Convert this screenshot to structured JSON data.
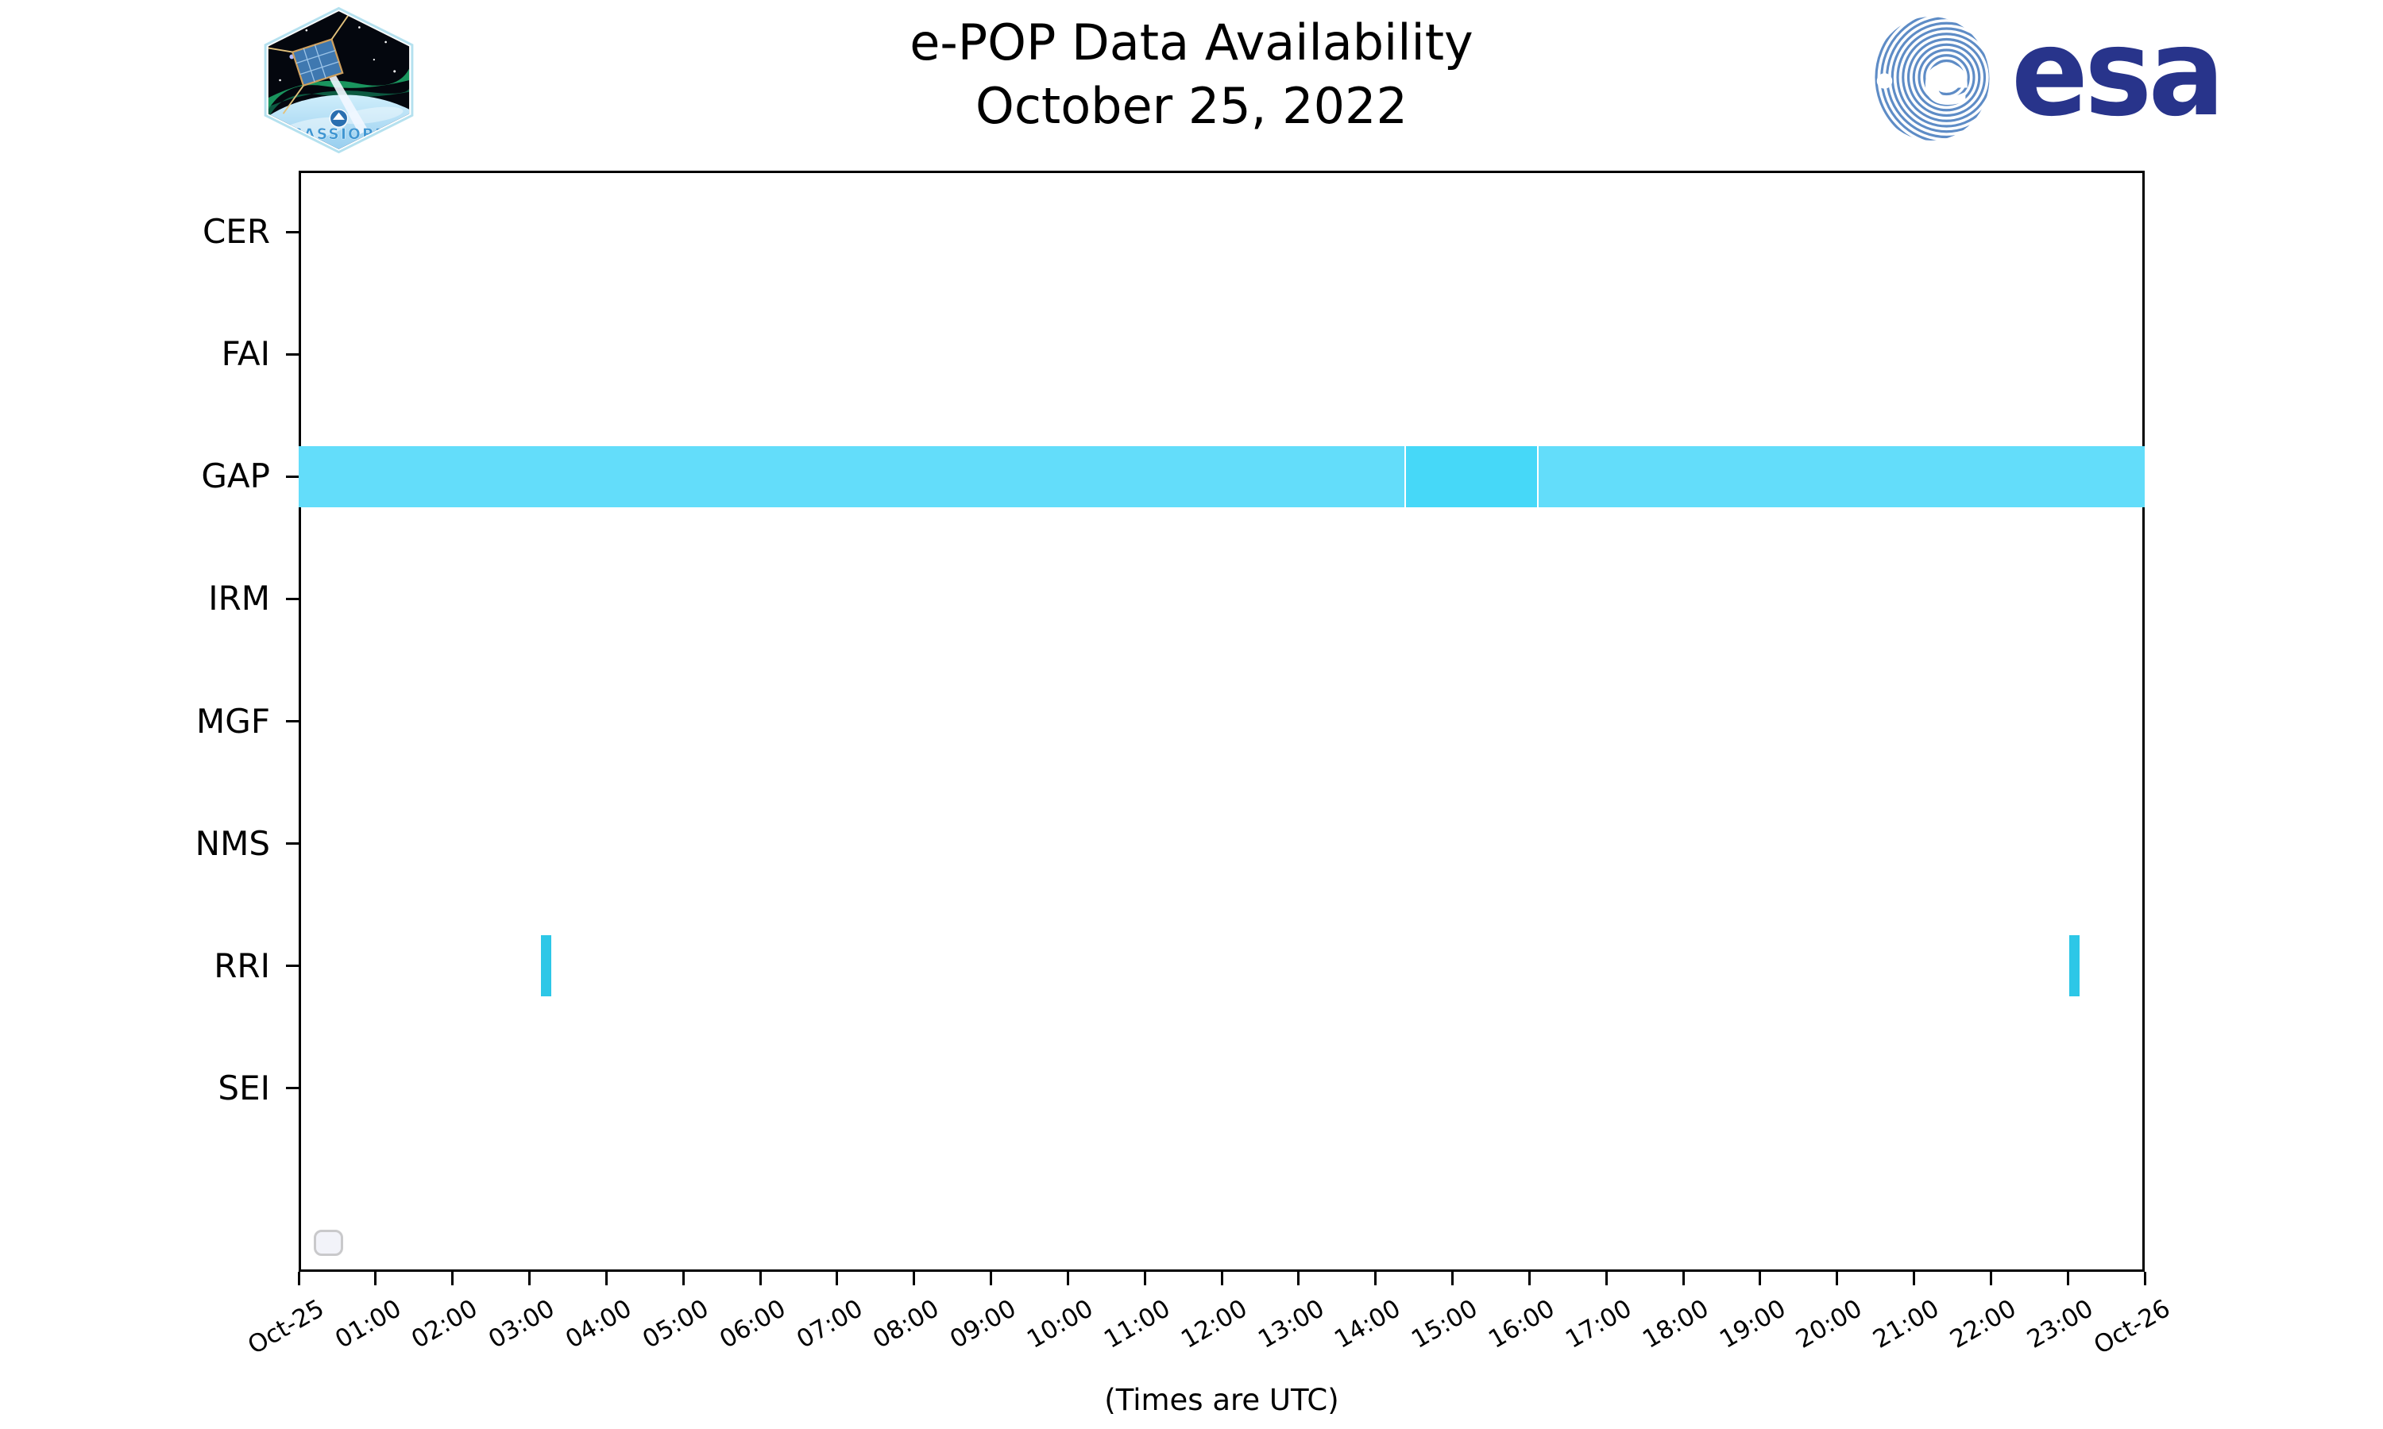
{
  "header": {
    "cassiope_patch_text": "CASSIOPE",
    "esa_logo_text": "esa"
  },
  "chart_data": {
    "type": "bar",
    "subtype": "horizontal-interval-availability-timeline",
    "title": "e-POP Data Availability",
    "subtitle": "October 25, 2022",
    "xlabel": "(Times are UTC)",
    "grid": false,
    "x_range_hours": [
      0,
      24
    ],
    "x_tick_interval_hours": 1,
    "x_tick_labels": [
      "Oct-25",
      "01:00",
      "02:00",
      "03:00",
      "04:00",
      "05:00",
      "06:00",
      "07:00",
      "08:00",
      "09:00",
      "10:00",
      "11:00",
      "12:00",
      "13:00",
      "14:00",
      "15:00",
      "16:00",
      "17:00",
      "18:00",
      "19:00",
      "20:00",
      "21:00",
      "22:00",
      "23:00",
      "Oct-26"
    ],
    "rows": [
      "CER",
      "FAI",
      "GAP",
      "IRM",
      "MGF",
      "NMS",
      "RRI",
      "SEI"
    ],
    "intervals": [
      {
        "row": "GAP",
        "start_hour": 0.0,
        "end_hour": 14.375,
        "start_time": "00:00",
        "end_time": "14:22",
        "color": "gap_light"
      },
      {
        "row": "GAP",
        "start_hour": 14.395,
        "end_hour": 16.105,
        "start_time": "14:24",
        "end_time": "16:06",
        "color": "gap_dark"
      },
      {
        "row": "GAP",
        "start_hour": 16.125,
        "end_hour": 24.0,
        "start_time": "16:08",
        "end_time": "24:00",
        "color": "gap_light"
      },
      {
        "row": "RRI",
        "start_hour": 3.149,
        "end_hour": 3.283,
        "start_time": "03:09",
        "end_time": "03:17",
        "color": "rri"
      },
      {
        "row": "RRI",
        "start_hour": 23.02,
        "end_hour": 23.158,
        "start_time": "23:01",
        "end_time": "23:09",
        "color": "rri"
      }
    ],
    "colors": {
      "gap_light": "#63DDFA",
      "gap_dark": "#46D8F8",
      "rri": "#2DC7E7"
    },
    "legend": {
      "visible": true,
      "entries": []
    }
  }
}
